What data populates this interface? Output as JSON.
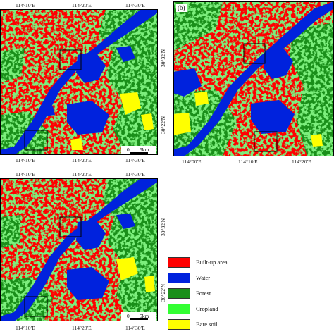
{
  "colors": {
    "built_up": "#ff0000",
    "water": "#0022dd",
    "forest": "#1a8f1a",
    "cropland": "#33ff33",
    "bare_soil": "#ffff00"
  },
  "panels": [
    {
      "tag": "",
      "top_labels": [
        "114°10′E",
        "114°20′E",
        "114°30′E"
      ],
      "bottom_labels": [
        "114°10′E",
        "114°20′E",
        "114°30′E"
      ],
      "right_labels": [
        "30°32′N",
        "30°22′N"
      ],
      "scale_zero": "0",
      "scale_unit": "5km"
    },
    {
      "tag": "(b)",
      "bottom_labels": [
        "114°00′E",
        "114°10′E",
        "114°20′E"
      ]
    },
    {
      "tag": "",
      "top_labels": [
        "114°10′E",
        "114°20′E",
        "114°30′E"
      ],
      "bottom_labels": [
        "114°10′E",
        "114°20′E",
        "114°30′E"
      ],
      "right_labels": [
        "30°32′N",
        "30°22′N"
      ],
      "scale_zero": "0",
      "scale_unit": "5km"
    }
  ],
  "legend": [
    {
      "label": "Built-up area",
      "color": "#ff0000"
    },
    {
      "label": "Water",
      "color": "#0022dd"
    },
    {
      "label": "Forest",
      "color": "#1a8f1a"
    },
    {
      "label": "Cropland",
      "color": "#33ff33"
    },
    {
      "label": "Bare soil",
      "color": "#ffff00"
    }
  ]
}
